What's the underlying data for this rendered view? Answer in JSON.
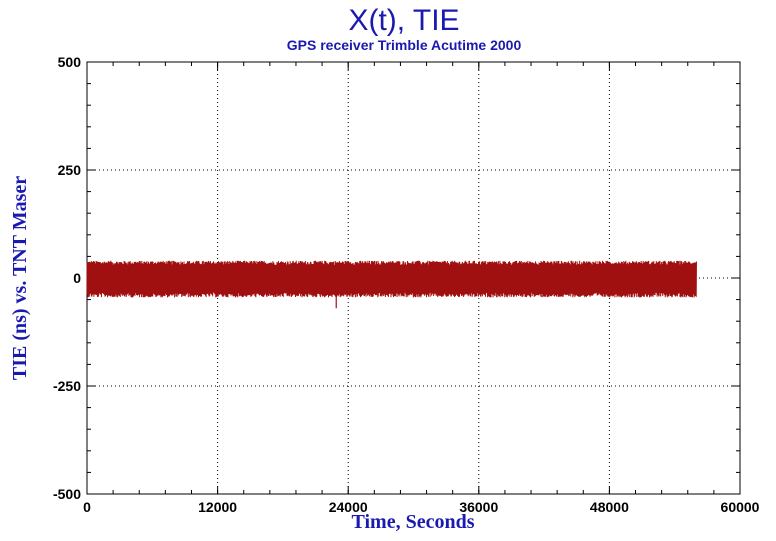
{
  "chart_data": {
    "type": "line",
    "title": "X(t), TIE",
    "subtitle": "GPS receiver Trimble Acutime 2000",
    "xlabel": "Time, Seconds",
    "ylabel": "TIE (ns) vs. TNT Maser",
    "xlim": [
      0,
      60000
    ],
    "ylim": [
      -500,
      500
    ],
    "x_ticks": [
      0,
      12000,
      24000,
      36000,
      48000,
      60000
    ],
    "y_ticks": [
      -500,
      -250,
      0,
      250,
      500
    ],
    "x_tick_labels": [
      "0",
      "12000",
      "24000",
      "36000",
      "48000",
      "60000"
    ],
    "y_tick_labels": [
      "-500",
      "-250",
      "0",
      "250",
      "500"
    ],
    "grid": true,
    "series": [
      {
        "color": "#a01010",
        "x_range": [
          0,
          56000
        ],
        "band_upper_approx": 40,
        "band_lower_approx": -45,
        "spikes": [
          {
            "x": 22900,
            "y": -70
          }
        ]
      }
    ]
  }
}
